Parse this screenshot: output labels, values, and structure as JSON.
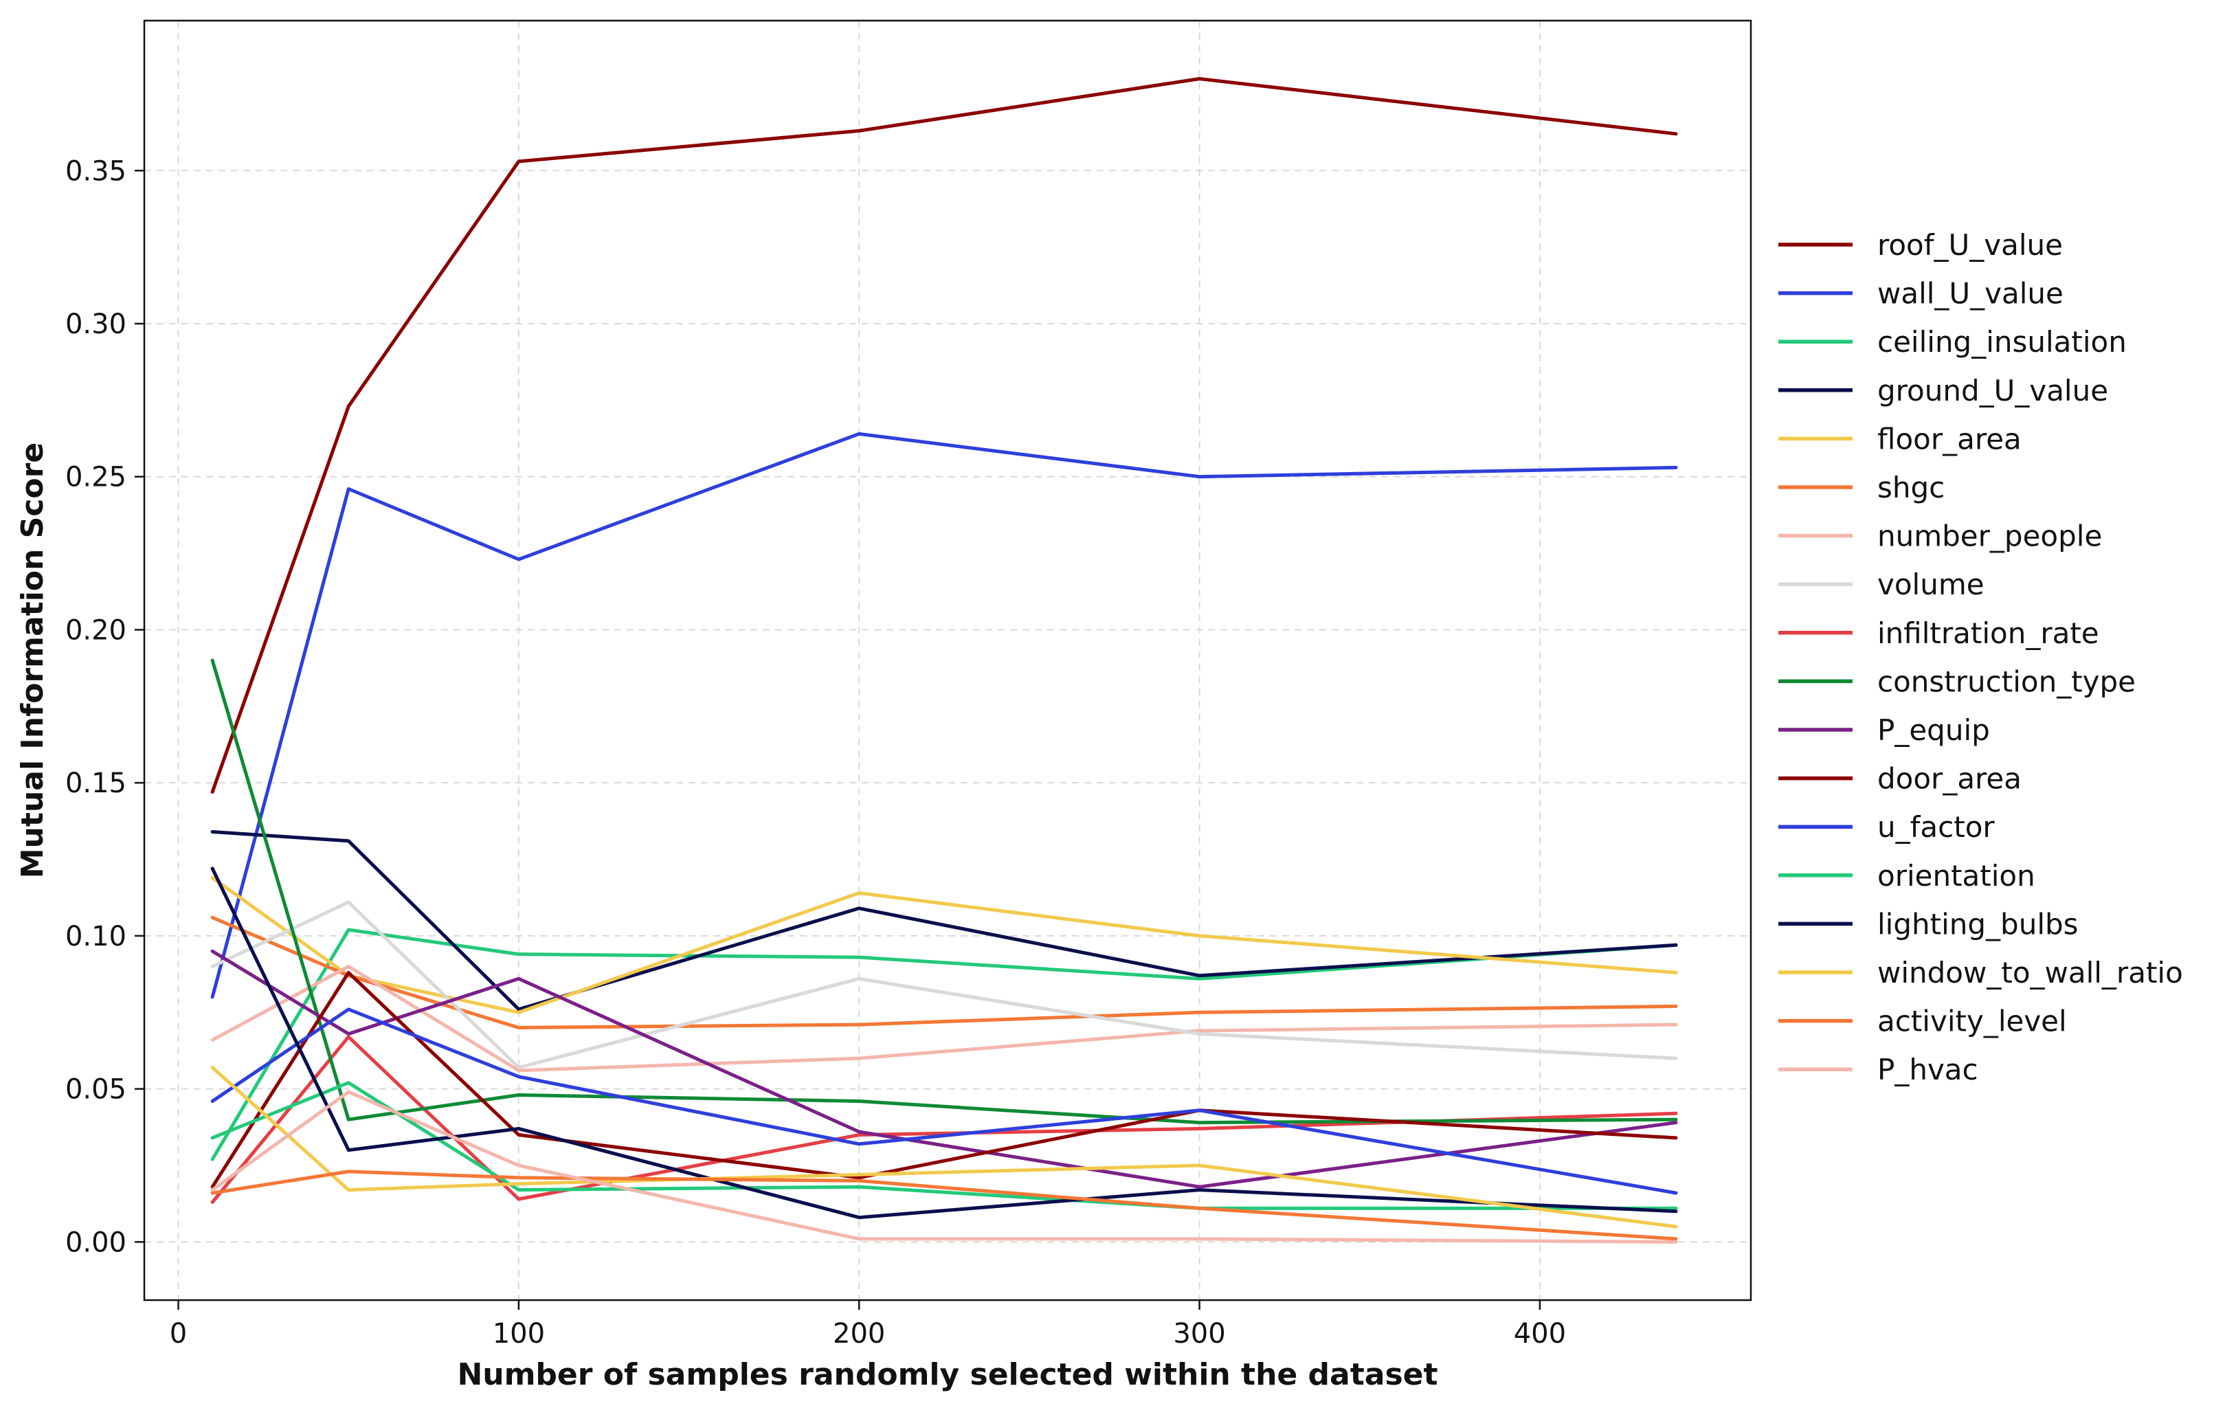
{
  "chart_data": {
    "type": "line",
    "title": "",
    "xlabel": "Number of samples randomly selected within the dataset",
    "ylabel": "Mutual Information Score",
    "x": [
      10,
      50,
      100,
      200,
      300,
      440
    ],
    "xlim": [
      -10,
      462
    ],
    "ylim": [
      -0.019,
      0.399
    ],
    "xticks": [
      0,
      100,
      200,
      300,
      400
    ],
    "xtick_labels": [
      "0",
      "100",
      "200",
      "300",
      "400"
    ],
    "yticks": [
      0.0,
      0.05,
      0.1,
      0.15,
      0.2,
      0.25,
      0.3,
      0.35
    ],
    "ytick_labels": [
      "0.00",
      "0.05",
      "0.10",
      "0.15",
      "0.20",
      "0.25",
      "0.30",
      "0.35"
    ],
    "grid": true,
    "legend_position": "right, outside plot area",
    "series": [
      {
        "name": "roof_U_value",
        "color": "#8b0000",
        "values": [
          0.147,
          0.273,
          0.353,
          0.363,
          0.38,
          0.362
        ]
      },
      {
        "name": "wall_U_value",
        "color": "#2e3fdc",
        "values": [
          0.08,
          0.246,
          0.223,
          0.264,
          0.25,
          0.253
        ]
      },
      {
        "name": "ceiling_insulation",
        "color": "#22c97a",
        "values": [
          0.027,
          0.102,
          0.094,
          0.093,
          0.086,
          0.097
        ]
      },
      {
        "name": "ground_U_value",
        "color": "#0a0f4d",
        "values": [
          0.134,
          0.131,
          0.076,
          0.109,
          0.087,
          0.097
        ]
      },
      {
        "name": "floor_area",
        "color": "#f2c94c",
        "values": [
          0.119,
          0.087,
          0.075,
          0.114,
          0.1,
          0.088
        ]
      },
      {
        "name": "shgc",
        "color": "#f47735",
        "values": [
          0.106,
          0.087,
          0.07,
          0.071,
          0.075,
          0.077
        ]
      },
      {
        "name": "number_people",
        "color": "#f4b6ac",
        "values": [
          0.066,
          0.09,
          0.056,
          0.06,
          0.069,
          0.071
        ]
      },
      {
        "name": "volume",
        "color": "#d9d9d9",
        "values": [
          0.09,
          0.111,
          0.057,
          0.086,
          0.068,
          0.06
        ]
      },
      {
        "name": "infiltration_rate",
        "color": "#e53e45",
        "values": [
          0.013,
          0.067,
          0.014,
          0.035,
          0.037,
          0.042
        ]
      },
      {
        "name": "construction_type",
        "color": "#0f8a35",
        "values": [
          0.19,
          0.04,
          0.048,
          0.046,
          0.039,
          0.04
        ]
      },
      {
        "name": "P_equip",
        "color": "#7b2088",
        "values": [
          0.095,
          0.068,
          0.086,
          0.036,
          0.018,
          0.039
        ]
      },
      {
        "name": "door_area",
        "color": "#8b0000",
        "values": [
          0.018,
          0.088,
          0.035,
          0.021,
          0.043,
          0.034
        ]
      },
      {
        "name": "u_factor",
        "color": "#2e3fdc",
        "values": [
          0.046,
          0.076,
          0.054,
          0.032,
          0.043,
          0.016
        ]
      },
      {
        "name": "orientation",
        "color": "#22c97a",
        "values": [
          0.034,
          0.052,
          0.017,
          0.018,
          0.011,
          0.011
        ]
      },
      {
        "name": "lighting_bulbs",
        "color": "#0a0f4d",
        "values": [
          0.122,
          0.03,
          0.037,
          0.008,
          0.017,
          0.01
        ]
      },
      {
        "name": "window_to_wall_ratio",
        "color": "#f2c94c",
        "values": [
          0.057,
          0.017,
          0.019,
          0.022,
          0.025,
          0.005
        ]
      },
      {
        "name": "activity_level",
        "color": "#f47735",
        "values": [
          0.016,
          0.023,
          0.021,
          0.02,
          0.011,
          0.001
        ]
      },
      {
        "name": "P_hvac",
        "color": "#f4b6ac",
        "values": [
          0.017,
          0.049,
          0.025,
          0.001,
          0.001,
          0.0
        ]
      }
    ]
  }
}
